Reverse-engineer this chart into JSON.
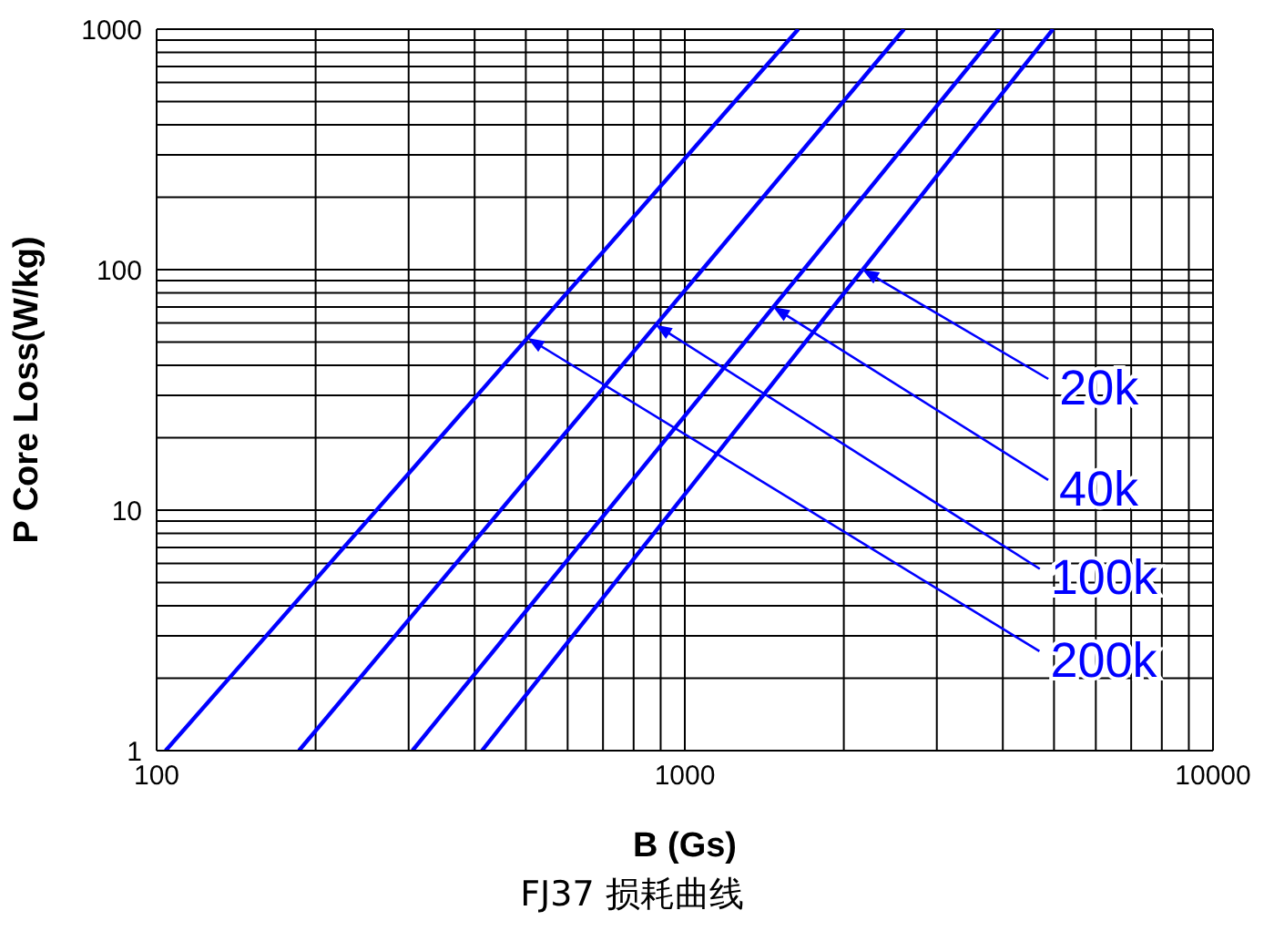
{
  "chart_data": {
    "type": "line",
    "xlabel": "B  (Gs)",
    "ylabel": "P Core Loss(W/kg)",
    "log": "xy",
    "grid": true,
    "legend": false,
    "marker": "none",
    "line_style": "solid",
    "xlim": [
      100,
      10000
    ],
    "xticks": [
      100,
      {
        "value": 200,
        "label": null
      },
      {
        "value": 300,
        "label": null
      },
      {
        "value": 400,
        "label": null
      },
      {
        "value": 500,
        "label": null
      },
      {
        "value": 600,
        "label": null
      },
      {
        "value": 700,
        "label": null
      },
      {
        "value": 800,
        "label": null
      },
      {
        "value": 900,
        "label": null
      },
      1000,
      {
        "value": 2000,
        "label": null
      },
      {
        "value": 3000,
        "label": null
      },
      {
        "value": 4000,
        "label": null
      },
      {
        "value": 5000,
        "label": null
      },
      {
        "value": 6000,
        "label": null
      },
      {
        "value": 7000,
        "label": null
      },
      {
        "value": 8000,
        "label": null
      },
      {
        "value": 9000,
        "label": null
      },
      10000
    ],
    "ylim": [
      1,
      1000
    ],
    "yticks": [
      1,
      {
        "value": 2,
        "label": null
      },
      {
        "value": 3,
        "label": null
      },
      {
        "value": 4,
        "label": null
      },
      {
        "value": 5,
        "label": null
      },
      {
        "value": 6,
        "label": null
      },
      {
        "value": 7,
        "label": null
      },
      {
        "value": 8,
        "label": null
      },
      {
        "value": 9,
        "label": null
      },
      10,
      {
        "value": 20,
        "label": null
      },
      {
        "value": 30,
        "label": null
      },
      {
        "value": 40,
        "label": null
      },
      {
        "value": 50,
        "label": null
      },
      {
        "value": 60,
        "label": null
      },
      {
        "value": 70,
        "label": null
      },
      {
        "value": 80,
        "label": null
      },
      {
        "value": 90,
        "label": null
      },
      100,
      {
        "value": 200,
        "label": null
      },
      {
        "value": 300,
        "label": null
      },
      {
        "value": 400,
        "label": null
      },
      {
        "value": 500,
        "label": null
      },
      {
        "value": 600,
        "label": null
      },
      {
        "value": 700,
        "label": null
      },
      {
        "value": 800,
        "label": null
      },
      {
        "value": 900,
        "label": null
      },
      1000
    ],
    "series": [
      {
        "color": "#0000ff",
        "x": [
          104,
          1640
        ],
        "values": [
          1,
          1000
        ]
      },
      {
        "color": "#0000ff",
        "x": [
          186,
          2600
        ],
        "values": [
          1,
          1000
        ]
      },
      {
        "color": "#0000ff",
        "x": [
          305,
          3940
        ],
        "values": [
          1,
          1000
        ]
      },
      {
        "color": "#0000ff",
        "x": [
          413,
          4980
        ],
        "values": [
          1,
          1000
        ]
      }
    ],
    "annotations": [
      {
        "text": "20k",
        "x": 2170,
        "y": 100
      },
      {
        "text": "40k",
        "x": 1470,
        "y": 70
      },
      {
        "text": "100k",
        "x": 880,
        "y": 59
      },
      {
        "text": "200k",
        "x": 504,
        "y": 52
      },
      "FJ37 损耗曲线"
    ]
  }
}
